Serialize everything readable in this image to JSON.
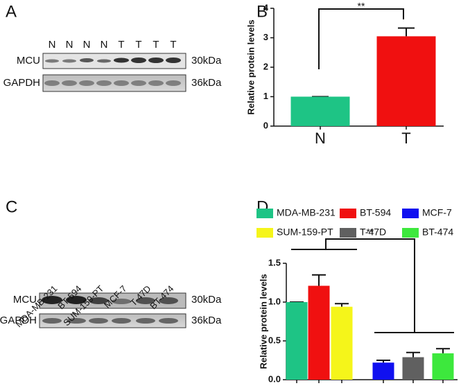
{
  "panel_labels": [
    "A",
    "B",
    "C",
    "D"
  ],
  "blots": [
    {
      "lanes": [
        "N",
        "N",
        "N",
        "N",
        "T",
        "T",
        "T",
        "T"
      ],
      "rows": [
        {
          "name": "MCU",
          "size": "30kDa"
        },
        {
          "name": "GAPDH",
          "size": "36kDa"
        }
      ]
    },
    {
      "lanes": [
        "MDA-MB-231",
        "BT-594",
        "SUM-159-PT",
        "MCF-7",
        "T-47D",
        "BT-474"
      ],
      "rows": [
        {
          "name": "MCU",
          "size": "30kDa"
        },
        {
          "name": "GAPDH",
          "size": "36kDa"
        }
      ]
    }
  ],
  "chart_data": [
    {
      "type": "bar",
      "y_label": "Relative protein levels",
      "categories": [
        "N",
        "T"
      ],
      "values": [
        1,
        3.05
      ],
      "errors": [
        0,
        0.28
      ],
      "colors": [
        "#1ec485",
        "#f01010"
      ],
      "ylim": [
        0,
        4
      ],
      "yticks": [
        0,
        1,
        2,
        3,
        4
      ],
      "annotation": "**"
    },
    {
      "type": "grouped-bar",
      "y_label": "Relative protein levels",
      "categories": [
        null
      ],
      "ylim": [
        0,
        1.5
      ],
      "yticks": [
        {
          "value": 0,
          "label": "0.0"
        },
        0.5,
        {
          "value": 1,
          "label": "1.0"
        },
        1.5
      ],
      "annotation": "**",
      "series": [
        {
          "name": "MDA-MB-231",
          "color": "#1ec485",
          "values": [
            1.0
          ],
          "errors": [
            0
          ]
        },
        {
          "name": "BT-594",
          "color": "#f01010",
          "values": [
            1.21
          ],
          "errors": [
            0.14
          ]
        },
        {
          "name": "MCF-7",
          "color": "#1010f0",
          "values": [
            0.22
          ],
          "errors": [
            0.03
          ]
        },
        {
          "name": "SUM-159-PT",
          "color": "#f5f51a",
          "values": [
            0.94
          ],
          "errors": [
            0.04
          ]
        },
        {
          "name": "T-47D",
          "color": "#606060",
          "values": [
            0.29
          ],
          "errors": [
            0.06
          ]
        },
        {
          "name": "BT-474",
          "color": "#3de83d",
          "values": [
            0.34
          ],
          "errors": [
            0.06
          ]
        }
      ]
    }
  ]
}
